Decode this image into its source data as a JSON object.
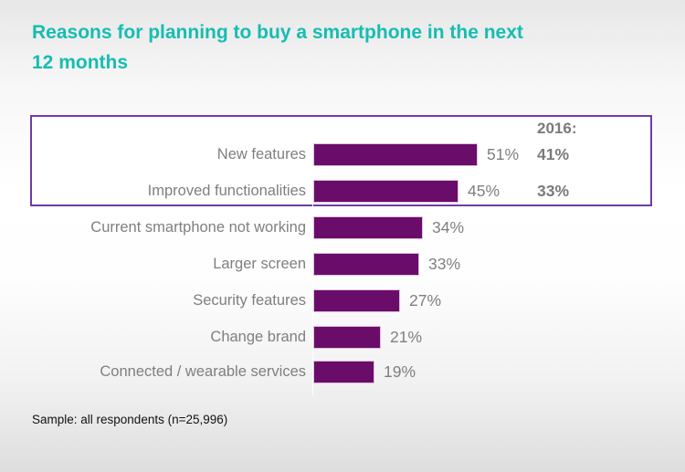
{
  "title": "Reasons for planning to buy a smartphone in the next 12 months",
  "title_lines": [
    "Reasons for planning to buy a smartphone in the next",
    "12 months"
  ],
  "footer": "Sample: all respondents (n=25,996)",
  "colors": {
    "title": "#15bdb2",
    "bar_fill": "#6a0c6a",
    "bar_border": "#dcc0dc",
    "highlight_box_border": "#6e3ca6",
    "label_text": "#7f7f7f",
    "footer_text": "#121212"
  },
  "chart_data": {
    "type": "bar",
    "orientation": "horizontal",
    "title": "Reasons for planning to buy a smartphone in the next 12 months",
    "unit": "%",
    "categories": [
      "New features",
      "Improved functionalities",
      "Current smartphone not working",
      "Larger screen",
      "Security features",
      "Change brand",
      "Connected / wearable services"
    ],
    "values": [
      51,
      45,
      34,
      33,
      27,
      21,
      19
    ],
    "value_labels": [
      "51%",
      "45%",
      "34%",
      "33%",
      "27%",
      "21%",
      "19%"
    ],
    "comparison": {
      "label": "2016:",
      "values": [
        41,
        33,
        null,
        null,
        null,
        null,
        null
      ],
      "value_labels": [
        "41%",
        "33%",
        "",
        "",
        "",
        "",
        ""
      ]
    },
    "highlighted_rows": [
      0,
      1
    ],
    "xlim": [
      0,
      60
    ],
    "grid": false,
    "legend": false,
    "sample_note": "Sample: all respondents (n=25,996)"
  }
}
